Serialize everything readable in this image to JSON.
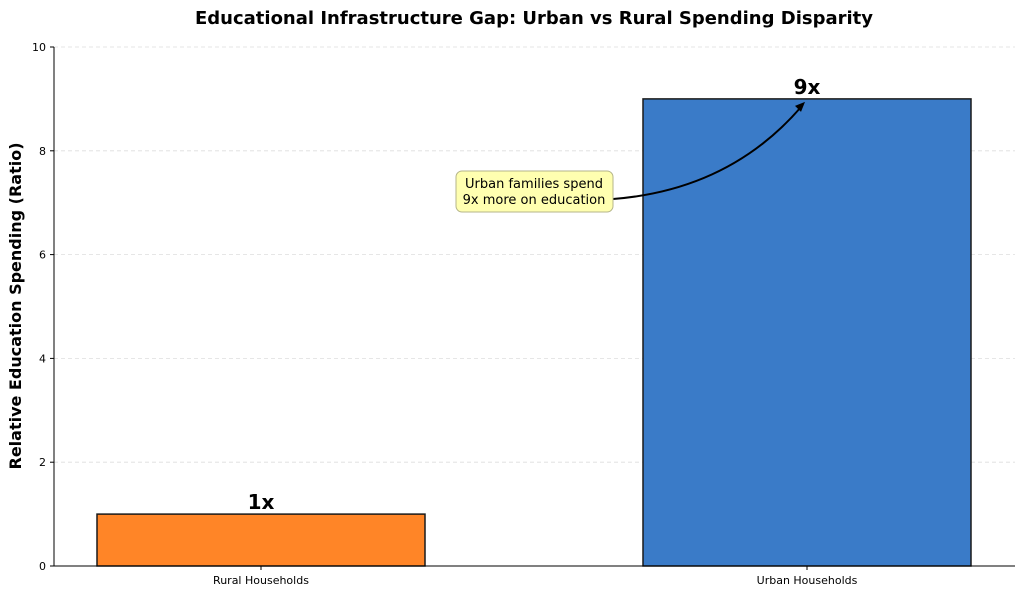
{
  "chart_data": {
    "type": "bar",
    "title": "Educational Infrastructure Gap: Urban vs Rural Spending Disparity",
    "xlabel": "",
    "ylabel": "Relative Education Spending (Ratio)",
    "categories": [
      "Rural Households",
      "Urban Households"
    ],
    "values": [
      1,
      9
    ],
    "data_labels": [
      "1x",
      "9x"
    ],
    "colors": [
      "#ff8527",
      "#3a7bc8"
    ],
    "edge_color": "#1a1a1a",
    "ylim": [
      0,
      10
    ],
    "yticks": [
      0,
      2,
      4,
      6,
      8,
      10
    ],
    "grid": true,
    "grid_axis": "y",
    "grid_style": "dashed",
    "annotation": {
      "lines": [
        "Urban families spend",
        "9x more on education"
      ],
      "target_category": "Urban Households",
      "target_value": 9,
      "box_color": "#ffffb0"
    }
  }
}
